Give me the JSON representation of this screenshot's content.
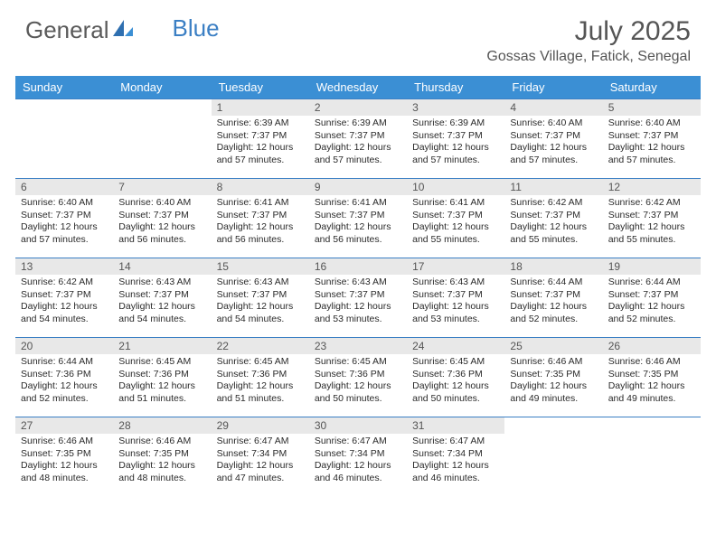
{
  "logo": {
    "text1": "General",
    "text2": "Blue"
  },
  "title": "July 2025",
  "location": "Gossas Village, Fatick, Senegal",
  "colors": {
    "header_bg": "#3b8fd4",
    "header_text": "#ffffff",
    "day_num_bg": "#e8e8e8",
    "border": "#3b7fc4",
    "title_color": "#555555",
    "body_text": "#2a2a2a"
  },
  "typography": {
    "title_fontsize": 30,
    "location_fontsize": 16,
    "weekday_fontsize": 13,
    "daynum_fontsize": 12,
    "body_fontsize": 10.5
  },
  "weekdays": [
    "Sunday",
    "Monday",
    "Tuesday",
    "Wednesday",
    "Thursday",
    "Friday",
    "Saturday"
  ],
  "weeks": [
    [
      null,
      null,
      {
        "n": "1",
        "sunrise": "Sunrise: 6:39 AM",
        "sunset": "Sunset: 7:37 PM",
        "daylight": "Daylight: 12 hours and 57 minutes."
      },
      {
        "n": "2",
        "sunrise": "Sunrise: 6:39 AM",
        "sunset": "Sunset: 7:37 PM",
        "daylight": "Daylight: 12 hours and 57 minutes."
      },
      {
        "n": "3",
        "sunrise": "Sunrise: 6:39 AM",
        "sunset": "Sunset: 7:37 PM",
        "daylight": "Daylight: 12 hours and 57 minutes."
      },
      {
        "n": "4",
        "sunrise": "Sunrise: 6:40 AM",
        "sunset": "Sunset: 7:37 PM",
        "daylight": "Daylight: 12 hours and 57 minutes."
      },
      {
        "n": "5",
        "sunrise": "Sunrise: 6:40 AM",
        "sunset": "Sunset: 7:37 PM",
        "daylight": "Daylight: 12 hours and 57 minutes."
      }
    ],
    [
      {
        "n": "6",
        "sunrise": "Sunrise: 6:40 AM",
        "sunset": "Sunset: 7:37 PM",
        "daylight": "Daylight: 12 hours and 57 minutes."
      },
      {
        "n": "7",
        "sunrise": "Sunrise: 6:40 AM",
        "sunset": "Sunset: 7:37 PM",
        "daylight": "Daylight: 12 hours and 56 minutes."
      },
      {
        "n": "8",
        "sunrise": "Sunrise: 6:41 AM",
        "sunset": "Sunset: 7:37 PM",
        "daylight": "Daylight: 12 hours and 56 minutes."
      },
      {
        "n": "9",
        "sunrise": "Sunrise: 6:41 AM",
        "sunset": "Sunset: 7:37 PM",
        "daylight": "Daylight: 12 hours and 56 minutes."
      },
      {
        "n": "10",
        "sunrise": "Sunrise: 6:41 AM",
        "sunset": "Sunset: 7:37 PM",
        "daylight": "Daylight: 12 hours and 55 minutes."
      },
      {
        "n": "11",
        "sunrise": "Sunrise: 6:42 AM",
        "sunset": "Sunset: 7:37 PM",
        "daylight": "Daylight: 12 hours and 55 minutes."
      },
      {
        "n": "12",
        "sunrise": "Sunrise: 6:42 AM",
        "sunset": "Sunset: 7:37 PM",
        "daylight": "Daylight: 12 hours and 55 minutes."
      }
    ],
    [
      {
        "n": "13",
        "sunrise": "Sunrise: 6:42 AM",
        "sunset": "Sunset: 7:37 PM",
        "daylight": "Daylight: 12 hours and 54 minutes."
      },
      {
        "n": "14",
        "sunrise": "Sunrise: 6:43 AM",
        "sunset": "Sunset: 7:37 PM",
        "daylight": "Daylight: 12 hours and 54 minutes."
      },
      {
        "n": "15",
        "sunrise": "Sunrise: 6:43 AM",
        "sunset": "Sunset: 7:37 PM",
        "daylight": "Daylight: 12 hours and 54 minutes."
      },
      {
        "n": "16",
        "sunrise": "Sunrise: 6:43 AM",
        "sunset": "Sunset: 7:37 PM",
        "daylight": "Daylight: 12 hours and 53 minutes."
      },
      {
        "n": "17",
        "sunrise": "Sunrise: 6:43 AM",
        "sunset": "Sunset: 7:37 PM",
        "daylight": "Daylight: 12 hours and 53 minutes."
      },
      {
        "n": "18",
        "sunrise": "Sunrise: 6:44 AM",
        "sunset": "Sunset: 7:37 PM",
        "daylight": "Daylight: 12 hours and 52 minutes."
      },
      {
        "n": "19",
        "sunrise": "Sunrise: 6:44 AM",
        "sunset": "Sunset: 7:37 PM",
        "daylight": "Daylight: 12 hours and 52 minutes."
      }
    ],
    [
      {
        "n": "20",
        "sunrise": "Sunrise: 6:44 AM",
        "sunset": "Sunset: 7:36 PM",
        "daylight": "Daylight: 12 hours and 52 minutes."
      },
      {
        "n": "21",
        "sunrise": "Sunrise: 6:45 AM",
        "sunset": "Sunset: 7:36 PM",
        "daylight": "Daylight: 12 hours and 51 minutes."
      },
      {
        "n": "22",
        "sunrise": "Sunrise: 6:45 AM",
        "sunset": "Sunset: 7:36 PM",
        "daylight": "Daylight: 12 hours and 51 minutes."
      },
      {
        "n": "23",
        "sunrise": "Sunrise: 6:45 AM",
        "sunset": "Sunset: 7:36 PM",
        "daylight": "Daylight: 12 hours and 50 minutes."
      },
      {
        "n": "24",
        "sunrise": "Sunrise: 6:45 AM",
        "sunset": "Sunset: 7:36 PM",
        "daylight": "Daylight: 12 hours and 50 minutes."
      },
      {
        "n": "25",
        "sunrise": "Sunrise: 6:46 AM",
        "sunset": "Sunset: 7:35 PM",
        "daylight": "Daylight: 12 hours and 49 minutes."
      },
      {
        "n": "26",
        "sunrise": "Sunrise: 6:46 AM",
        "sunset": "Sunset: 7:35 PM",
        "daylight": "Daylight: 12 hours and 49 minutes."
      }
    ],
    [
      {
        "n": "27",
        "sunrise": "Sunrise: 6:46 AM",
        "sunset": "Sunset: 7:35 PM",
        "daylight": "Daylight: 12 hours and 48 minutes."
      },
      {
        "n": "28",
        "sunrise": "Sunrise: 6:46 AM",
        "sunset": "Sunset: 7:35 PM",
        "daylight": "Daylight: 12 hours and 48 minutes."
      },
      {
        "n": "29",
        "sunrise": "Sunrise: 6:47 AM",
        "sunset": "Sunset: 7:34 PM",
        "daylight": "Daylight: 12 hours and 47 minutes."
      },
      {
        "n": "30",
        "sunrise": "Sunrise: 6:47 AM",
        "sunset": "Sunset: 7:34 PM",
        "daylight": "Daylight: 12 hours and 46 minutes."
      },
      {
        "n": "31",
        "sunrise": "Sunrise: 6:47 AM",
        "sunset": "Sunset: 7:34 PM",
        "daylight": "Daylight: 12 hours and 46 minutes."
      },
      null,
      null
    ]
  ]
}
